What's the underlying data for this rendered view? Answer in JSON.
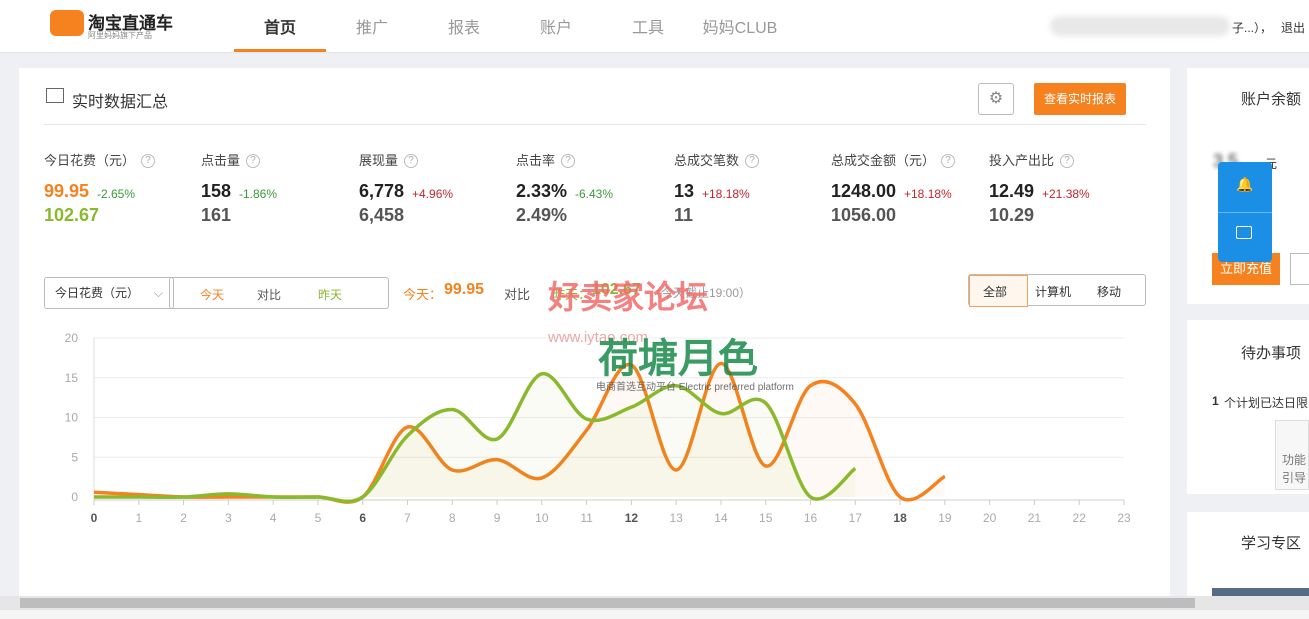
{
  "header": {
    "logo": "淘宝直通车",
    "logo_sub": "阿里妈妈旗下产品",
    "nav": [
      "首页",
      "推广",
      "报表",
      "账户",
      "工具",
      "妈妈CLUB"
    ],
    "user": "子...），",
    "logout": "退出"
  },
  "summary": {
    "title": "实时数据汇总",
    "report_button": "查看实时报表",
    "metrics": [
      {
        "label": "今日花费（元）",
        "today": "99.95",
        "change": "-2.65%",
        "yesterday": "102.67"
      },
      {
        "label": "点击量",
        "today": "158",
        "change": "-1.86%",
        "yesterday": "161"
      },
      {
        "label": "展现量",
        "today": "6,778",
        "change": "+4.96%",
        "yesterday": "6,458"
      },
      {
        "label": "点击率",
        "today": "2.33%",
        "change": "-6.43%",
        "yesterday": "2.49%"
      },
      {
        "label": "总成交笔数",
        "today": "13",
        "change": "+18.18%",
        "yesterday": "11"
      },
      {
        "label": "总成交金额（元）",
        "today": "1248.00",
        "change": "+18.18%",
        "yesterday": "1056.00"
      },
      {
        "label": "投入产出比",
        "today": "12.49",
        "change": "+21.38%",
        "yesterday": "10.29"
      }
    ],
    "controls": {
      "select": "今日花费（元）",
      "toggles": [
        "今天",
        "对比",
        "昨天"
      ],
      "today_label": "今天：",
      "today_value": "99.95",
      "compare": "对比",
      "yesterday_label": "昨天：",
      "yesterday_value": "102.67",
      "note": "（今天截止19:00）",
      "tabs": [
        "全部",
        "计算机",
        "移动"
      ]
    },
    "watermark": [
      "好卖家论坛",
      "www.iytao.com",
      "荷塘月色",
      "电商首选互动平台 Electric preferred platform"
    ]
  },
  "chart_data": {
    "type": "line",
    "x": [
      0,
      1,
      2,
      3,
      4,
      5,
      6,
      7,
      8,
      9,
      10,
      11,
      12,
      13,
      14,
      15,
      16,
      17,
      18,
      19,
      20,
      21,
      22,
      23
    ],
    "xlim": [
      0,
      23
    ],
    "ylim": [
      0,
      20
    ],
    "yticks": [
      0,
      5,
      10,
      15,
      20
    ],
    "grid": true,
    "series": [
      {
        "name": "今天",
        "color": "#f5821f",
        "values": [
          0.6,
          0.3,
          0,
          0,
          0,
          0,
          0,
          8.8,
          3.4,
          4.7,
          2.4,
          8.4,
          16.6,
          3.4,
          16.8,
          3.9,
          14,
          11.7,
          0,
          2.6,
          null,
          null,
          null,
          null
        ]
      },
      {
        "name": "昨天",
        "color": "#8ab92d",
        "values": [
          0,
          0,
          0,
          0.4,
          0,
          0,
          0,
          7.7,
          11,
          7.3,
          15.5,
          9.8,
          11.3,
          14,
          10.5,
          11.8,
          0,
          3.6,
          null,
          null,
          null,
          null,
          null,
          null
        ]
      }
    ]
  },
  "sidebar": {
    "balance_title": "账户余额",
    "balance_unit": "元",
    "recharge": "立即充值",
    "todo_title": "待办事项",
    "todo_count": "1",
    "todo_text": "个计划已达日限",
    "guide": "功能引导",
    "learn_title": "学习专区"
  }
}
